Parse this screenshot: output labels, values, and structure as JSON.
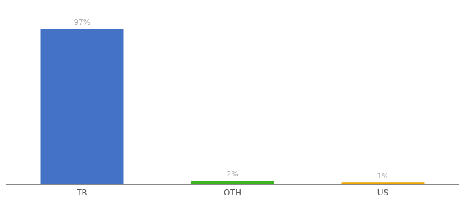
{
  "chart_data": {
    "type": "bar",
    "categories": [
      "TR",
      "OTH",
      "US"
    ],
    "values": [
      97,
      2,
      1
    ],
    "value_labels": [
      "97%",
      "2%",
      "1%"
    ],
    "colors": [
      "#4472c4",
      "#3cb521",
      "#f0a500"
    ],
    "ylim": [
      0,
      105
    ],
    "grid": false,
    "data_labels": true,
    "tick_labels": "x"
  }
}
